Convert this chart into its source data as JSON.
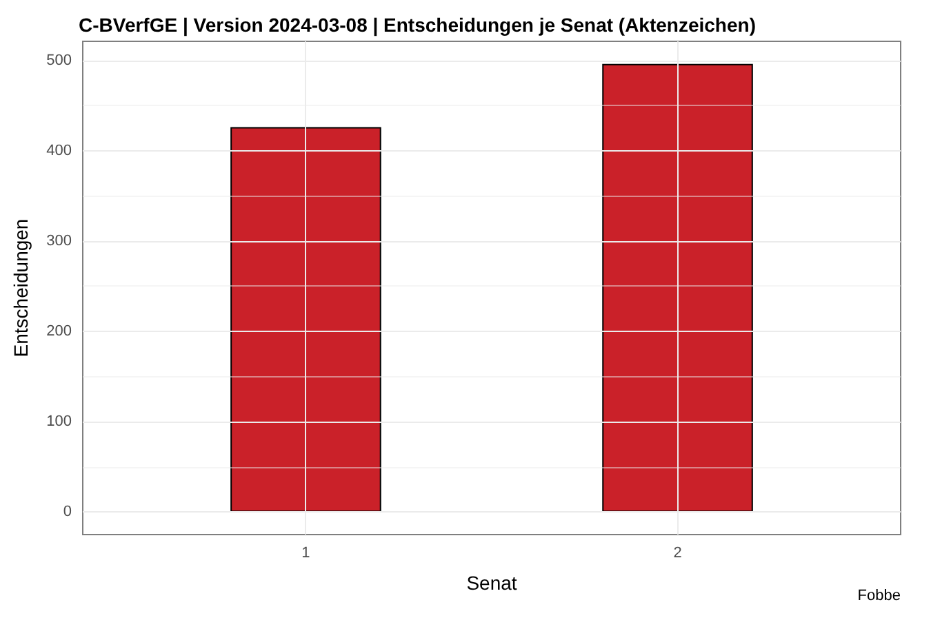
{
  "chart_data": {
    "type": "bar",
    "title": "C-BVerfGE | Version 2024-03-08 | Entscheidungen je Senat (Aktenzeichen)",
    "xlabel": "Senat",
    "ylabel": "Entscheidungen",
    "categories": [
      "1",
      "2"
    ],
    "values": [
      426,
      496
    ],
    "color": "#ca2129",
    "ylim": [
      -25,
      521
    ],
    "yticks": [
      0,
      100,
      200,
      300,
      400,
      500
    ],
    "grid": true,
    "annotations": [
      "Fobbe"
    ]
  }
}
